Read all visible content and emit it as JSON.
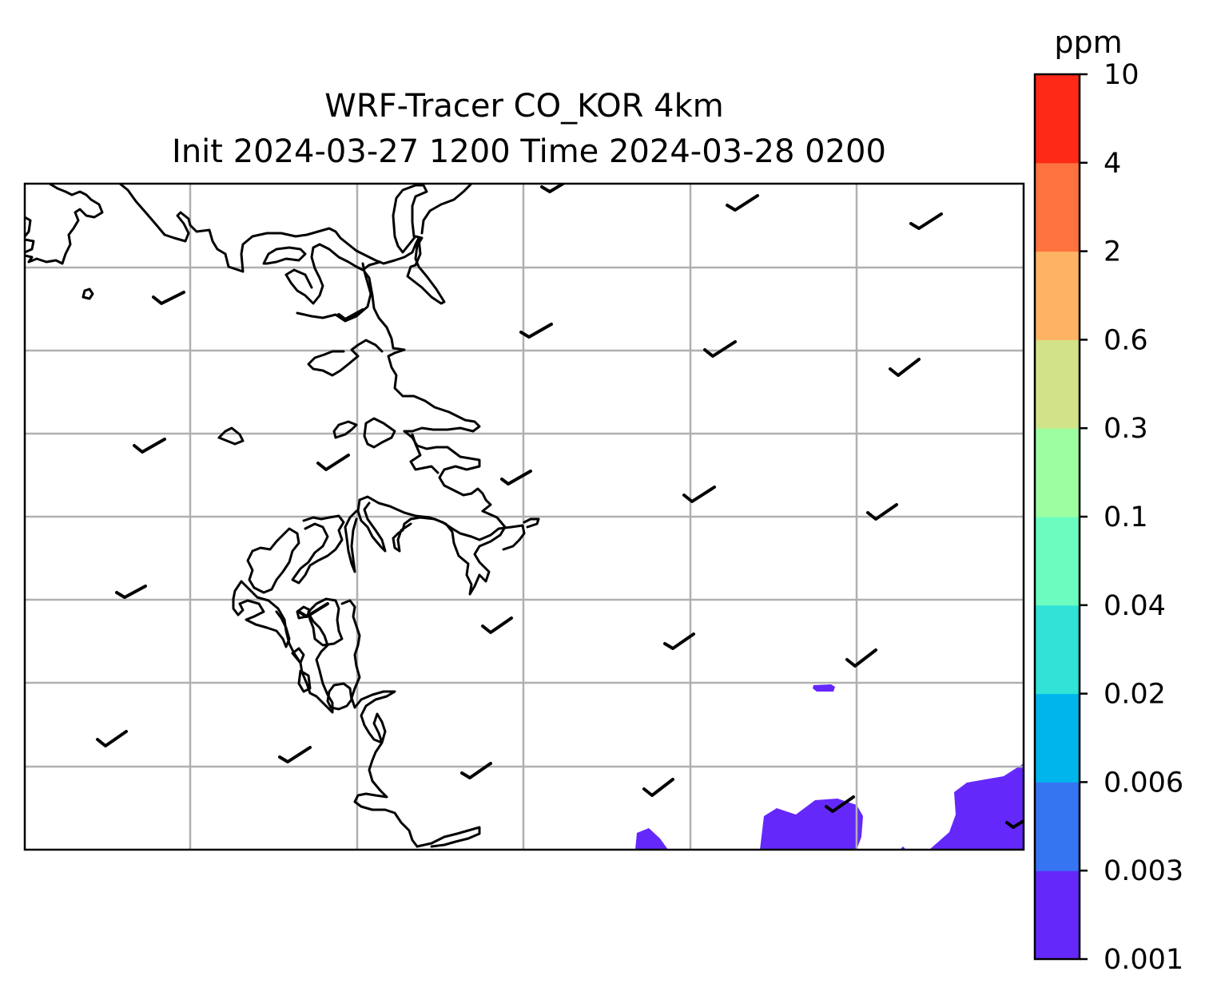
{
  "title": {
    "line1": "WRF-Tracer CO_KOR 4km",
    "line2": "Init 2024-03-27 1200 Time 2024-03-28 0200"
  },
  "colorbar": {
    "unit": "ppm",
    "levels": [
      "0.001",
      "0.003",
      "0.006",
      "0.02",
      "0.04",
      "0.1",
      "0.3",
      "0.6",
      "2",
      "4",
      "10"
    ],
    "colors": [
      "#6528fb",
      "#3575f1",
      "#00b4ec",
      "#30e3d6",
      "#6bfcc0",
      "#9cfea1",
      "#d1e288",
      "#feb264",
      "#fe7240",
      "#fe2916"
    ]
  },
  "map": {
    "gridlines": true,
    "grid_color": "#b0b0b0",
    "coastline_color": "#000000",
    "concentration_color": "#6528fb",
    "concentration_level": "0.001"
  }
}
